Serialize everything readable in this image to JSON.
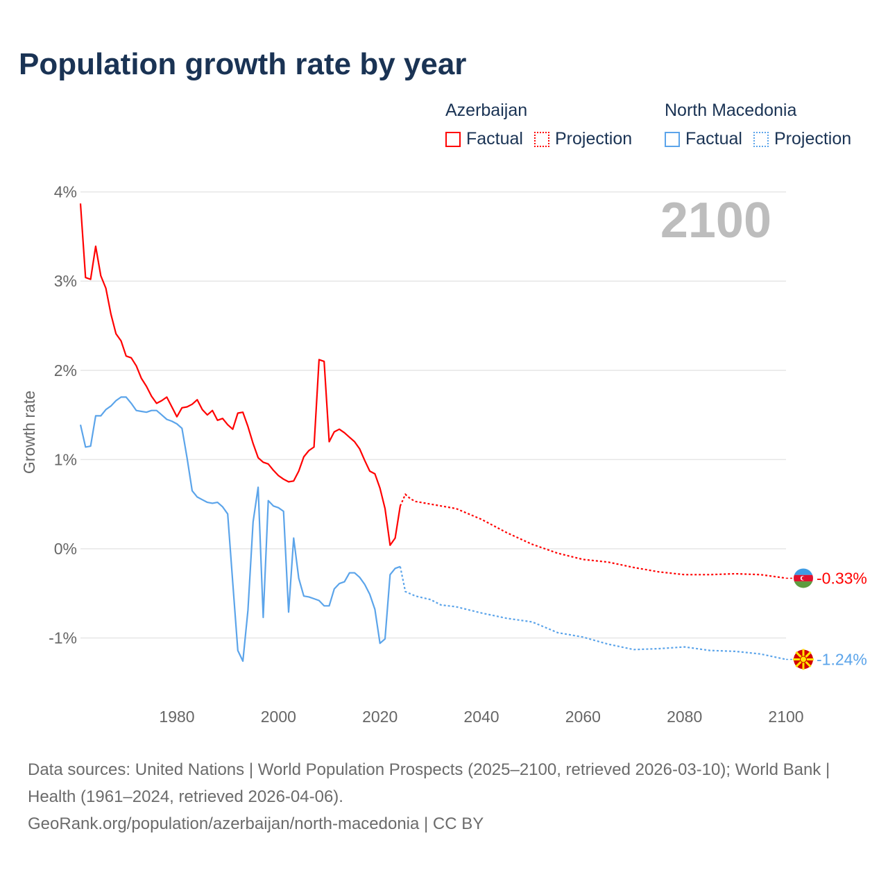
{
  "title": "Population growth rate by year",
  "legend": {
    "groups": [
      {
        "name": "Azerbaijan",
        "factual": "Factual",
        "projection": "Projection",
        "color": "#ff0000"
      },
      {
        "name": "North Macedonia",
        "factual": "Factual",
        "projection": "Projection",
        "color": "#5ba4ea"
      }
    ]
  },
  "year_overlay": "2100",
  "footer": {
    "sources": "Data sources: United Nations | World Population Prospects (2025–2100, retrieved 2026-03-10); World Bank | Health (1961–2024, retrieved 2026-04-06).",
    "link": "GeoRank.org/population/azerbaijan/north-macedonia | CC BY"
  },
  "chart_data": {
    "type": "line",
    "title": "Population growth rate by year",
    "xlabel": "",
    "ylabel": "Growth rate",
    "xlim": [
      1961,
      2100
    ],
    "ylim": [
      -1.5,
      4
    ],
    "x_ticks": [
      "1980",
      "2000",
      "2020",
      "2040",
      "2060",
      "2080",
      "2100"
    ],
    "y_ticks": [
      {
        "v": 4,
        "label": "4%"
      },
      {
        "v": 3,
        "label": "3%"
      },
      {
        "v": 2,
        "label": "2%"
      },
      {
        "v": 1,
        "label": "1%"
      },
      {
        "v": 0,
        "label": "0%"
      },
      {
        "v": -1,
        "label": "-1%"
      }
    ],
    "grid": true,
    "legend_placement": "top-right",
    "series": [
      {
        "name": "Azerbaijan",
        "color": "#ff0000",
        "end_label": "-0.33%",
        "factual": {
          "x": [
            1961,
            1962,
            1963,
            1964,
            1965,
            1966,
            1967,
            1968,
            1969,
            1970,
            1971,
            1972,
            1973,
            1974,
            1975,
            1976,
            1977,
            1978,
            1979,
            1980,
            1981,
            1982,
            1983,
            1984,
            1985,
            1986,
            1987,
            1988,
            1989,
            1990,
            1991,
            1992,
            1993,
            1994,
            1995,
            1996,
            1997,
            1998,
            1999,
            2000,
            2001,
            2002,
            2003,
            2004,
            2005,
            2006,
            2007,
            2008,
            2009,
            2010,
            2011,
            2012,
            2013,
            2014,
            2015,
            2016,
            2017,
            2018,
            2019,
            2020,
            2021,
            2022,
            2023,
            2024
          ],
          "y": [
            3.87,
            3.04,
            3.02,
            3.39,
            3.06,
            2.92,
            2.63,
            2.41,
            2.33,
            2.16,
            2.14,
            2.05,
            1.91,
            1.82,
            1.71,
            1.63,
            1.66,
            1.7,
            1.59,
            1.48,
            1.58,
            1.59,
            1.62,
            1.67,
            1.56,
            1.5,
            1.55,
            1.44,
            1.46,
            1.39,
            1.34,
            1.52,
            1.53,
            1.37,
            1.18,
            1.02,
            0.97,
            0.95,
            0.88,
            0.82,
            0.78,
            0.75,
            0.76,
            0.87,
            1.03,
            1.1,
            1.14,
            2.12,
            2.1,
            1.2,
            1.31,
            1.34,
            1.3,
            1.25,
            1.2,
            1.12,
            0.99,
            0.87,
            0.84,
            0.68,
            0.45,
            0.04,
            0.12,
            0.48
          ]
        },
        "projection": {
          "x": [
            2024,
            2025,
            2026,
            2027,
            2030,
            2035,
            2040,
            2045,
            2050,
            2055,
            2060,
            2065,
            2070,
            2075,
            2080,
            2085,
            2090,
            2095,
            2100
          ],
          "y": [
            0.48,
            0.61,
            0.56,
            0.53,
            0.5,
            0.45,
            0.33,
            0.18,
            0.05,
            -0.05,
            -0.12,
            -0.15,
            -0.21,
            -0.26,
            -0.29,
            -0.29,
            -0.28,
            -0.29,
            -0.33
          ]
        }
      },
      {
        "name": "North Macedonia",
        "color": "#5ba4ea",
        "end_label": "-1.24%",
        "factual": {
          "x": [
            1961,
            1962,
            1963,
            1964,
            1965,
            1966,
            1967,
            1968,
            1969,
            1970,
            1971,
            1972,
            1973,
            1974,
            1975,
            1976,
            1977,
            1978,
            1979,
            1980,
            1981,
            1982,
            1983,
            1984,
            1985,
            1986,
            1987,
            1988,
            1989,
            1990,
            1991,
            1992,
            1993,
            1994,
            1995,
            1996,
            1997,
            1998,
            1999,
            2000,
            2001,
            2002,
            2003,
            2004,
            2005,
            2006,
            2007,
            2008,
            2009,
            2010,
            2011,
            2012,
            2013,
            2014,
            2015,
            2016,
            2017,
            2018,
            2019,
            2020,
            2021,
            2022,
            2023,
            2024
          ],
          "y": [
            1.39,
            1.14,
            1.15,
            1.49,
            1.49,
            1.56,
            1.6,
            1.66,
            1.7,
            1.7,
            1.63,
            1.55,
            1.54,
            1.53,
            1.55,
            1.55,
            1.5,
            1.45,
            1.43,
            1.4,
            1.35,
            1.02,
            0.65,
            0.58,
            0.55,
            0.52,
            0.51,
            0.52,
            0.47,
            0.39,
            -0.38,
            -1.14,
            -1.26,
            -0.69,
            0.3,
            0.69,
            -0.77,
            0.54,
            0.48,
            0.46,
            0.42,
            -0.71,
            0.12,
            -0.33,
            -0.53,
            -0.54,
            -0.56,
            -0.58,
            -0.64,
            -0.64,
            -0.45,
            -0.39,
            -0.37,
            -0.27,
            -0.27,
            -0.32,
            -0.4,
            -0.51,
            -0.68,
            -1.06,
            -1.01,
            -0.29,
            -0.22,
            -0.2
          ]
        },
        "projection": {
          "x": [
            2024,
            2025,
            2027,
            2030,
            2032,
            2035,
            2040,
            2045,
            2050,
            2055,
            2060,
            2065,
            2070,
            2075,
            2080,
            2085,
            2090,
            2095,
            2100
          ],
          "y": [
            -0.2,
            -0.48,
            -0.53,
            -0.57,
            -0.63,
            -0.65,
            -0.72,
            -0.78,
            -0.82,
            -0.94,
            -0.99,
            -1.07,
            -1.13,
            -1.12,
            -1.1,
            -1.14,
            -1.15,
            -1.18,
            -1.24
          ]
        }
      }
    ]
  }
}
